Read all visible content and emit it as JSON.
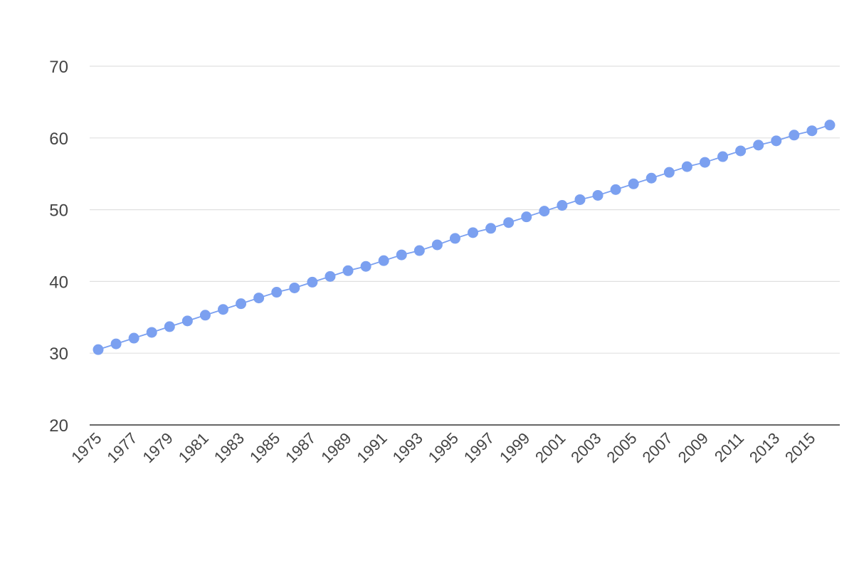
{
  "chart_data": {
    "type": "line",
    "x": [
      1975,
      1976,
      1977,
      1978,
      1979,
      1980,
      1981,
      1982,
      1983,
      1984,
      1985,
      1986,
      1987,
      1988,
      1989,
      1990,
      1991,
      1992,
      1993,
      1994,
      1995,
      1996,
      1997,
      1998,
      1999,
      2000,
      2001,
      2002,
      2003,
      2004,
      2005,
      2006,
      2007,
      2008,
      2009,
      2010,
      2011,
      2012,
      2013,
      2014,
      2015,
      2016
    ],
    "series": [
      {
        "name": "",
        "color": "#7ba0f0",
        "values": [
          30.5,
          31.3,
          32.1,
          32.9,
          33.7,
          34.5,
          35.3,
          36.1,
          36.9,
          37.7,
          38.5,
          39.1,
          39.9,
          40.7,
          41.5,
          42.1,
          42.9,
          43.7,
          44.3,
          45.1,
          46.0,
          46.8,
          47.4,
          48.2,
          49.0,
          49.8,
          50.6,
          51.4,
          52.0,
          52.8,
          53.6,
          54.4,
          55.2,
          56.0,
          56.6,
          57.4,
          58.2,
          59.0,
          59.6,
          60.4,
          61.0,
          61.8
        ]
      }
    ],
    "ylim": [
      20,
      70
    ],
    "yticks": [
      "20",
      "30",
      "40",
      "50",
      "60",
      "70"
    ],
    "xticks": [
      "1975",
      "1977",
      "1979",
      "1981",
      "1983",
      "1985",
      "1987",
      "1989",
      "1991",
      "1993",
      "1995",
      "1997",
      "1999",
      "2001",
      "2003",
      "2005",
      "2007",
      "2009",
      "2011",
      "2013",
      "2015"
    ],
    "title": "",
    "xlabel": "",
    "ylabel": "",
    "grid": true,
    "legend": "none"
  }
}
